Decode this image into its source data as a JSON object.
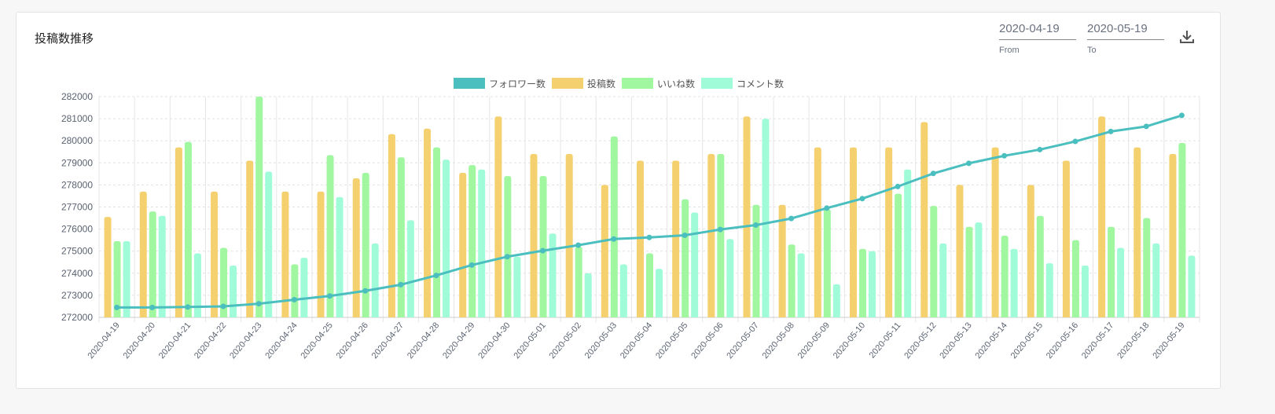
{
  "header": {
    "title": "投稿数推移",
    "from_value": "2020-04-19",
    "from_label": "From",
    "to_value": "2020-05-19",
    "to_label": "To",
    "download_icon": "download-icon"
  },
  "chart_data": {
    "type": "bar+line",
    "title": "",
    "legend": {
      "placement": "top",
      "entries": [
        "フォロワー数",
        "投稿数",
        "いいね数",
        "コメント数"
      ]
    },
    "ylim": [
      272000,
      282000
    ],
    "yticks": [
      272000,
      273000,
      274000,
      275000,
      276000,
      277000,
      278000,
      279000,
      280000,
      281000,
      282000
    ],
    "grid": true,
    "colors": {
      "フォロワー数": "#4bbfbf",
      "投稿数": "#f5d06e",
      "いいね数": "#a0f7a0",
      "コメント数": "#a0fbd9"
    },
    "categories": [
      "2020-04-19",
      "2020-04-20",
      "2020-04-21",
      "2020-04-22",
      "2020-04-23",
      "2020-04-24",
      "2020-04-25",
      "2020-04-26",
      "2020-04-27",
      "2020-04-28",
      "2020-04-29",
      "2020-04-30",
      "2020-05-01",
      "2020-05-02",
      "2020-05-03",
      "2020-05-04",
      "2020-05-05",
      "2020-05-06",
      "2020-05-07",
      "2020-05-08",
      "2020-05-09",
      "2020-05-10",
      "2020-05-11",
      "2020-05-12",
      "2020-05-13",
      "2020-05-14",
      "2020-05-15",
      "2020-05-16",
      "2020-05-17",
      "2020-05-18",
      "2020-05-19"
    ],
    "series": [
      {
        "name": "フォロワー数",
        "type": "line",
        "values": [
          272450,
          272450,
          272470,
          272500,
          272620,
          272800,
          272970,
          273200,
          273480,
          273900,
          274370,
          274750,
          275020,
          275270,
          275550,
          275620,
          275720,
          275980,
          276180,
          276480,
          276950,
          277380,
          277930,
          278520,
          278980,
          279320,
          279600,
          279970,
          280420,
          280650,
          281150
        ]
      },
      {
        "name": "投稿数",
        "type": "bar",
        "values": [
          276550,
          277700,
          279700,
          277700,
          279100,
          277700,
          277700,
          278300,
          280300,
          280550,
          278550,
          281100,
          279400,
          279400,
          278000,
          279100,
          279100,
          279400,
          281100,
          277100,
          279700,
          279700,
          279700,
          280850,
          278000,
          279700,
          278000,
          279100,
          281100,
          279700,
          279400
        ]
      },
      {
        "name": "いいね数",
        "type": "bar",
        "values": [
          275450,
          276800,
          279950,
          275150,
          282000,
          274400,
          279350,
          278550,
          279250,
          279700,
          278900,
          278400,
          278400,
          275200,
          280200,
          274900,
          277350,
          279400,
          277100,
          275300,
          276900,
          275100,
          277600,
          277050,
          276100,
          275700,
          276600,
          275500,
          276100,
          276500,
          279900
        ]
      },
      {
        "name": "コメント数",
        "type": "bar",
        "values": [
          275450,
          276600,
          274900,
          274350,
          278600,
          274700,
          277450,
          275350,
          276400,
          279150,
          278700,
          274750,
          275800,
          274000,
          274400,
          274200,
          276750,
          275550,
          281000,
          274900,
          273500,
          275000,
          278700,
          275350,
          276300,
          275100,
          274450,
          274350,
          275150,
          275350,
          274800
        ]
      }
    ]
  }
}
